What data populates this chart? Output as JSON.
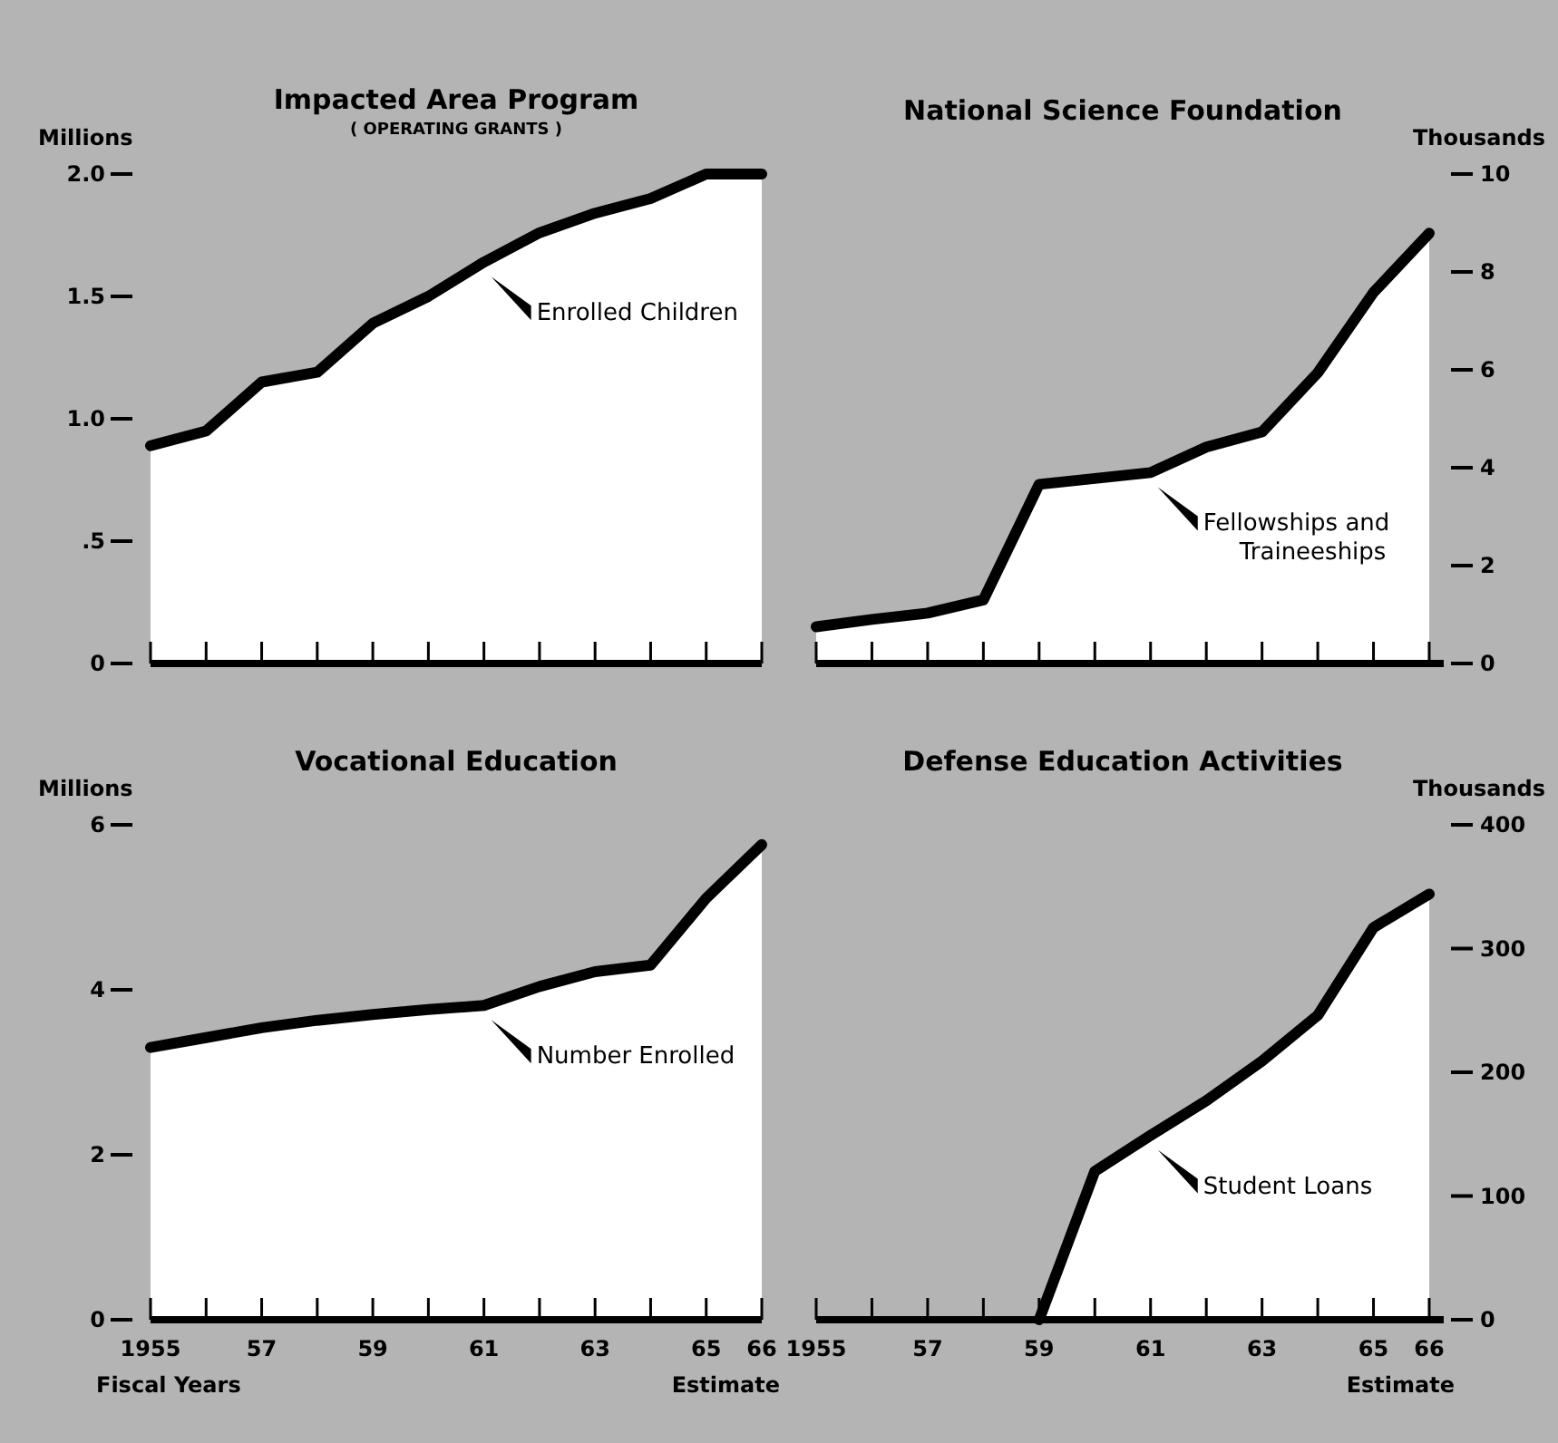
{
  "chart_data": [
    {
      "type": "area",
      "title": "Impacted Area Program",
      "subtitle": "( OPERATING GRANTS )",
      "ylabel": "Millions",
      "categories": [
        "1955",
        null,
        "57",
        null,
        "59",
        null,
        "61",
        null,
        "63",
        null,
        "65",
        "66"
      ],
      "tick_labels": "y",
      "grid": false,
      "series": [
        {
          "name": "Enrolled Children",
          "color": "#000000",
          "values": [
            0.89,
            0.95,
            1.15,
            1.19,
            1.39,
            1.5,
            1.64,
            1.76,
            1.84,
            1.9,
            2.0,
            2.0
          ]
        }
      ],
      "ylim": [
        0,
        2.0
      ],
      "yticks": [
        0,
        {
          "value": 0.5,
          "label": ".5"
        },
        {
          "value": 1,
          "label": "1.0"
        },
        1.5,
        {
          "value": 2,
          "label": "2.0"
        }
      ]
    },
    {
      "type": "area",
      "title": "National Science Foundation",
      "y2label": "Thousands",
      "categories": [
        "1955",
        null,
        "57",
        null,
        "59",
        null,
        "61",
        null,
        "63",
        null,
        "65",
        "66"
      ],
      "tick_labels": "y",
      "grid": false,
      "series": [
        {
          "name": "Fellowships and Traineeships",
          "color": "#000000",
          "axis": "y2",
          "values": [
            0.75,
            0.9,
            1.03,
            1.3,
            3.66,
            3.78,
            3.9,
            4.42,
            4.73,
            5.94,
            7.58,
            8.79
          ]
        }
      ],
      "y2lim": [
        0,
        10
      ],
      "y2ticks": [
        0,
        2,
        4,
        6,
        8,
        10
      ]
    },
    {
      "type": "area",
      "title": "Vocational Education",
      "ylabel": "Millions",
      "xlabel": "Fiscal Years",
      "annotations": [
        "Estimate"
      ],
      "categories": [
        "1955",
        null,
        "57",
        null,
        "59",
        null,
        "61",
        null,
        "63",
        null,
        "65",
        "66"
      ],
      "grid": false,
      "series": [
        {
          "name": "Number Enrolled",
          "color": "#000000",
          "values": [
            3.3,
            3.42,
            3.54,
            3.63,
            3.7,
            3.76,
            3.81,
            4.04,
            4.22,
            4.3,
            5.11,
            5.76
          ]
        }
      ],
      "ylim": [
        0,
        6
      ],
      "yticks": [
        0,
        2,
        4,
        6
      ]
    },
    {
      "type": "area",
      "title": "Defense Education Activities",
      "y2label": "Thousands",
      "annotations": [
        "Estimate"
      ],
      "categories": [
        "1955",
        null,
        "57",
        null,
        "59",
        null,
        "61",
        null,
        "63",
        null,
        "65",
        "66"
      ],
      "grid": false,
      "series": [
        {
          "name": "Student Loans",
          "color": "#000000",
          "axis": "y2",
          "values": [
            null,
            null,
            null,
            null,
            0,
            120,
            149,
            177,
            209,
            246,
            317,
            344
          ]
        }
      ],
      "y2lim": [
        0,
        400
      ],
      "y2ticks": [
        0,
        100,
        200,
        300,
        400
      ]
    }
  ]
}
